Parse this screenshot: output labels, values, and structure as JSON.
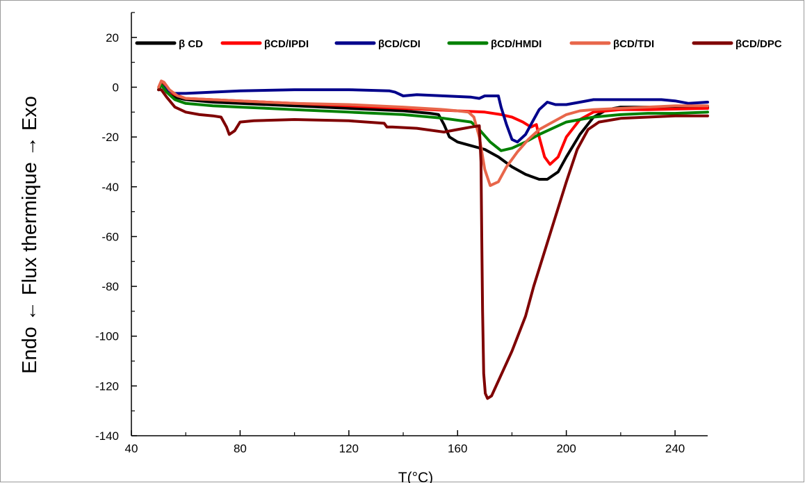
{
  "chart_data": {
    "type": "line",
    "xlabel": "T(°C)",
    "ylabel": "Endo ← Flux thermique → Exo",
    "xlim": [
      40,
      252
    ],
    "ylim": [
      -140,
      30
    ],
    "xticks": [
      40,
      80,
      120,
      160,
      200,
      240
    ],
    "yticks": [
      20,
      0,
      -20,
      -40,
      -60,
      -80,
      -100,
      -120,
      -140
    ],
    "grid": false,
    "legend_position": "top",
    "series": [
      {
        "name": "β CD",
        "color": "#000000",
        "points": [
          [
            50,
            -1
          ],
          [
            51,
            1
          ],
          [
            53,
            -2
          ],
          [
            56,
            -4
          ],
          [
            60,
            -5
          ],
          [
            70,
            -6
          ],
          [
            80,
            -6.5
          ],
          [
            100,
            -7.5
          ],
          [
            120,
            -8.5
          ],
          [
            140,
            -9.5
          ],
          [
            150,
            -10.5
          ],
          [
            153,
            -11
          ],
          [
            155,
            -15
          ],
          [
            157,
            -20
          ],
          [
            160,
            -22
          ],
          [
            165,
            -23.5
          ],
          [
            170,
            -25
          ],
          [
            175,
            -28
          ],
          [
            180,
            -32
          ],
          [
            185,
            -35
          ],
          [
            190,
            -37
          ],
          [
            193,
            -37
          ],
          [
            197,
            -34
          ],
          [
            200,
            -28
          ],
          [
            205,
            -19
          ],
          [
            210,
            -12
          ],
          [
            215,
            -9
          ],
          [
            220,
            -8
          ],
          [
            230,
            -8
          ],
          [
            240,
            -8
          ],
          [
            252,
            -8
          ]
        ]
      },
      {
        "name": "βCD/IPDI",
        "color": "#ff0000",
        "points": [
          [
            50,
            -1
          ],
          [
            51,
            1.5
          ],
          [
            53,
            -1
          ],
          [
            56,
            -3
          ],
          [
            60,
            -4.5
          ],
          [
            80,
            -5.5
          ],
          [
            100,
            -6.5
          ],
          [
            120,
            -7.5
          ],
          [
            140,
            -8.5
          ],
          [
            160,
            -9.5
          ],
          [
            170,
            -10
          ],
          [
            176,
            -11
          ],
          [
            180,
            -12
          ],
          [
            184,
            -14
          ],
          [
            187,
            -16
          ],
          [
            189,
            -15
          ],
          [
            190,
            -20
          ],
          [
            192,
            -28
          ],
          [
            194,
            -31
          ],
          [
            197,
            -28
          ],
          [
            200,
            -20
          ],
          [
            205,
            -13
          ],
          [
            210,
            -10
          ],
          [
            220,
            -9
          ],
          [
            230,
            -9
          ],
          [
            252,
            -8.5
          ]
        ]
      },
      {
        "name": "βCD/CDI",
        "color": "#00008b",
        "points": [
          [
            50,
            -1
          ],
          [
            51,
            1
          ],
          [
            53,
            -1
          ],
          [
            56,
            -2.5
          ],
          [
            60,
            -2.5
          ],
          [
            80,
            -1.5
          ],
          [
            100,
            -1
          ],
          [
            120,
            -1
          ],
          [
            135,
            -1.5
          ],
          [
            137,
            -2
          ],
          [
            140,
            -3.5
          ],
          [
            145,
            -3
          ],
          [
            155,
            -3.5
          ],
          [
            165,
            -4
          ],
          [
            168,
            -4.5
          ],
          [
            170,
            -3.5
          ],
          [
            175,
            -3.5
          ],
          [
            176,
            -8
          ],
          [
            178,
            -15
          ],
          [
            180,
            -21
          ],
          [
            182,
            -22
          ],
          [
            185,
            -19
          ],
          [
            188,
            -13
          ],
          [
            190,
            -9
          ],
          [
            193,
            -6
          ],
          [
            196,
            -7
          ],
          [
            200,
            -7
          ],
          [
            205,
            -6
          ],
          [
            210,
            -5
          ],
          [
            220,
            -5
          ],
          [
            235,
            -5
          ],
          [
            240,
            -5.5
          ],
          [
            245,
            -6.5
          ],
          [
            252,
            -6
          ]
        ]
      },
      {
        "name": "βCD/HMDI",
        "color": "#008000",
        "points": [
          [
            50,
            -1
          ],
          [
            51,
            1
          ],
          [
            53,
            -2
          ],
          [
            56,
            -5
          ],
          [
            60,
            -6.5
          ],
          [
            70,
            -7.5
          ],
          [
            80,
            -8
          ],
          [
            100,
            -9
          ],
          [
            120,
            -10
          ],
          [
            140,
            -11
          ],
          [
            155,
            -12.5
          ],
          [
            165,
            -14
          ],
          [
            168,
            -17
          ],
          [
            172,
            -22
          ],
          [
            176,
            -25.5
          ],
          [
            180,
            -24.5
          ],
          [
            185,
            -22
          ],
          [
            190,
            -19
          ],
          [
            195,
            -16.5
          ],
          [
            200,
            -14
          ],
          [
            210,
            -12
          ],
          [
            220,
            -11
          ],
          [
            230,
            -10.5
          ],
          [
            240,
            -10.5
          ],
          [
            252,
            -10
          ]
        ]
      },
      {
        "name": "βCD/TDI",
        "color": "#e8664a",
        "points": [
          [
            50,
            0
          ],
          [
            51,
            2.5
          ],
          [
            52,
            2
          ],
          [
            54,
            -1
          ],
          [
            57,
            -3.5
          ],
          [
            60,
            -4.5
          ],
          [
            80,
            -5.5
          ],
          [
            100,
            -6.5
          ],
          [
            120,
            -7
          ],
          [
            140,
            -8
          ],
          [
            155,
            -9
          ],
          [
            160,
            -9.5
          ],
          [
            164,
            -10
          ],
          [
            166,
            -12
          ],
          [
            168,
            -20
          ],
          [
            170,
            -33
          ],
          [
            172,
            -39.5
          ],
          [
            175,
            -38
          ],
          [
            178,
            -32
          ],
          [
            182,
            -26
          ],
          [
            186,
            -21
          ],
          [
            190,
            -17
          ],
          [
            195,
            -14
          ],
          [
            200,
            -11
          ],
          [
            205,
            -9.5
          ],
          [
            210,
            -9
          ],
          [
            220,
            -8.5
          ],
          [
            230,
            -8
          ],
          [
            240,
            -7.5
          ],
          [
            252,
            -7.5
          ]
        ]
      },
      {
        "name": "βCD/DPC",
        "color": "#7f0000",
        "points": [
          [
            50,
            -1
          ],
          [
            51,
            -1
          ],
          [
            53,
            -4
          ],
          [
            56,
            -8
          ],
          [
            60,
            -10
          ],
          [
            65,
            -11
          ],
          [
            70,
            -11.5
          ],
          [
            73,
            -12
          ],
          [
            75,
            -16
          ],
          [
            76,
            -19
          ],
          [
            78,
            -17.5
          ],
          [
            80,
            -14
          ],
          [
            85,
            -13.5
          ],
          [
            100,
            -13
          ],
          [
            120,
            -13.5
          ],
          [
            133,
            -14.5
          ],
          [
            134,
            -16
          ],
          [
            136,
            -16
          ],
          [
            145,
            -16.5
          ],
          [
            155,
            -18
          ],
          [
            160,
            -17
          ],
          [
            165,
            -16
          ],
          [
            168,
            -15.5
          ],
          [
            168.6,
            -30
          ],
          [
            168.9,
            -60
          ],
          [
            169.2,
            -90
          ],
          [
            169.6,
            -115
          ],
          [
            170.2,
            -123
          ],
          [
            171,
            -125
          ],
          [
            172.5,
            -124
          ],
          [
            175,
            -118
          ],
          [
            180,
            -106
          ],
          [
            185,
            -92
          ],
          [
            188,
            -80
          ],
          [
            192,
            -66
          ],
          [
            196,
            -52
          ],
          [
            200,
            -38
          ],
          [
            204,
            -25
          ],
          [
            208,
            -17
          ],
          [
            212,
            -14
          ],
          [
            220,
            -12.5
          ],
          [
            230,
            -12
          ],
          [
            240,
            -11.5
          ],
          [
            252,
            -11.5
          ]
        ]
      }
    ]
  }
}
